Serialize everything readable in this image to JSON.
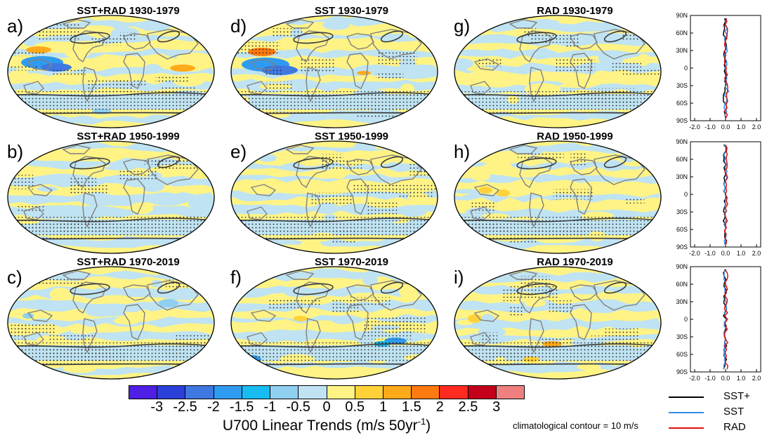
{
  "panels": [
    {
      "letter": "a)",
      "title": "SST+RAD 1930-1979"
    },
    {
      "letter": "b)",
      "title": "SST+RAD 1950-1999"
    },
    {
      "letter": "c)",
      "title": "SST+RAD 1970-2019"
    },
    {
      "letter": "d)",
      "title": "SST 1930-1979"
    },
    {
      "letter": "e)",
      "title": "SST 1950-1999"
    },
    {
      "letter": "f)",
      "title": "SST 1970-2019"
    },
    {
      "letter": "g)",
      "title": "RAD 1930-1979"
    },
    {
      "letter": "h)",
      "title": "RAD 1950-1999"
    },
    {
      "letter": "i)",
      "title": "RAD 1970-2019"
    }
  ],
  "colorbar": {
    "colors": [
      "#4f1fe6",
      "#2b3fd9",
      "#3f78e0",
      "#2f9bf0",
      "#18bcf2",
      "#8fd0f0",
      "#bfe3f2",
      "#fff385",
      "#ffd23a",
      "#ffaa1a",
      "#ff7a10",
      "#ff2a20",
      "#c4001a",
      "#f08080"
    ],
    "ticks": [
      "-3",
      "-2.5",
      "-2",
      "-1.5",
      "-1",
      "-0.5",
      "0",
      "0.5",
      "1",
      "1.5",
      "2",
      "2.5",
      "3"
    ],
    "title": "U700 Linear Trends (m/s 50yr",
    "title_sup": "-1",
    "title_end": ")"
  },
  "climatology_note": "climatological contour = 10 m/s",
  "profile_axes": {
    "y_ticks": [
      "90N",
      "60N",
      "30N",
      "0",
      "30S",
      "60S",
      "90S"
    ],
    "x_ticks": [
      "-2.0",
      "-1.0",
      "0.0",
      "1.0",
      "2.0"
    ]
  },
  "legend": [
    {
      "label": "SST+",
      "color": "#000000"
    },
    {
      "label": "SST",
      "color": "#2e8fe8"
    },
    {
      "label": "RAD",
      "color": "#e01010"
    }
  ],
  "colors": {
    "land_outline": "#808080",
    "contour": "#3a3a3a",
    "ocean_light": "#bfe3f2",
    "yellow": "#fff385"
  }
}
